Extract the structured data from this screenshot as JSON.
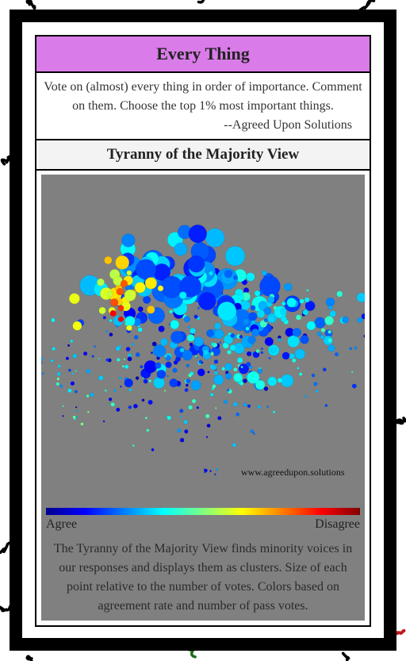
{
  "header": {
    "title": "Every Thing",
    "description": "Vote on (almost) every thing in order of importance. Comment on them. Choose the top 1% most important things.",
    "attribution": "--Agreed Upon Solutions"
  },
  "view": {
    "title": "Tyranny of the Majority View",
    "watermark": "www.agreedupon.solutions",
    "legend": {
      "low": "Agree",
      "high": "Disagree"
    },
    "caption": "The Tyranny of the Majority View finds minority voices in our responses and displays them as clusters. Size of each point relative to the number of votes. Colors based on agreement rate and number of pass votes."
  }
}
